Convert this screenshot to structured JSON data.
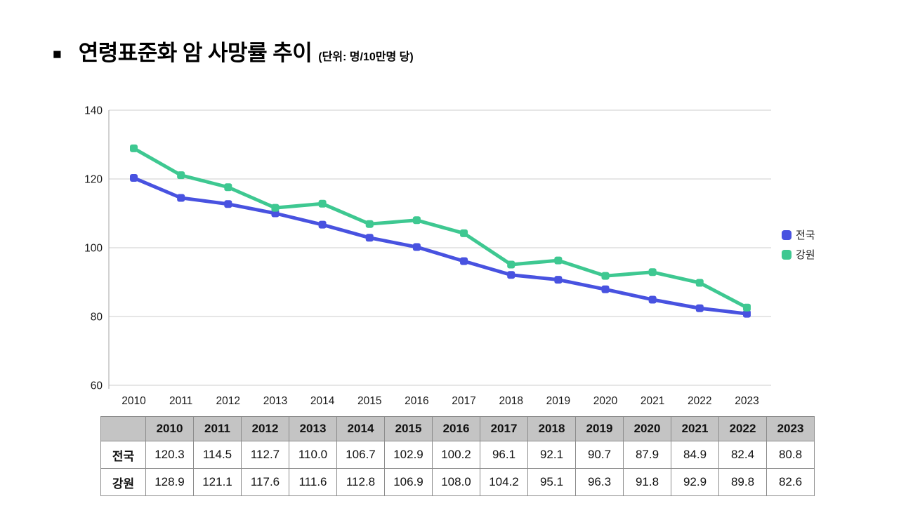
{
  "header": {
    "bullet": "■",
    "title": "연령표준화 암 사망률 추이",
    "unit_label": "(단위: 명/10만명 당)"
  },
  "chart_data": {
    "type": "line",
    "title": "연령표준화 암 사망률 추이",
    "unit": "명/10만명 당",
    "categories": [
      "2010",
      "2011",
      "2012",
      "2013",
      "2014",
      "2015",
      "2016",
      "2017",
      "2018",
      "2019",
      "2020",
      "2021",
      "2022",
      "2023"
    ],
    "series": [
      {
        "name": "전국",
        "color": "#4852e0",
        "values": [
          120.3,
          114.5,
          112.7,
          110.0,
          106.7,
          102.9,
          100.2,
          96.1,
          92.1,
          90.7,
          87.9,
          84.9,
          82.4,
          80.8
        ]
      },
      {
        "name": "강원",
        "color": "#3ec891",
        "values": [
          128.9,
          121.1,
          117.6,
          111.6,
          112.8,
          106.9,
          108.0,
          104.2,
          95.1,
          96.3,
          91.8,
          92.9,
          89.8,
          82.6
        ]
      }
    ],
    "ylim": [
      60,
      140
    ],
    "yticks": [
      60,
      80,
      100,
      120,
      140
    ],
    "grid": true,
    "legend_position": "right",
    "gridline_color": "#cccccc",
    "axis_color": "#b3b3b3",
    "tick_label_color": "#1a1a1a"
  },
  "table": {
    "corner_label": "",
    "columns": [
      "2010",
      "2011",
      "2012",
      "2013",
      "2014",
      "2015",
      "2016",
      "2017",
      "2018",
      "2019",
      "2020",
      "2021",
      "2022",
      "2023"
    ],
    "rows": [
      {
        "label": "전국",
        "values": [
          "120.3",
          "114.5",
          "112.7",
          "110.0",
          "106.7",
          "102.9",
          "100.2",
          "96.1",
          "92.1",
          "90.7",
          "87.9",
          "84.9",
          "82.4",
          "80.8"
        ]
      },
      {
        "label": "강원",
        "values": [
          "128.9",
          "121.1",
          "117.6",
          "111.6",
          "112.8",
          "106.9",
          "108.0",
          "104.2",
          "95.1",
          "96.3",
          "91.8",
          "92.9",
          "89.8",
          "82.6"
        ]
      }
    ],
    "header_bg": "#c4c4c4",
    "border_color": "#8c8c8c"
  }
}
